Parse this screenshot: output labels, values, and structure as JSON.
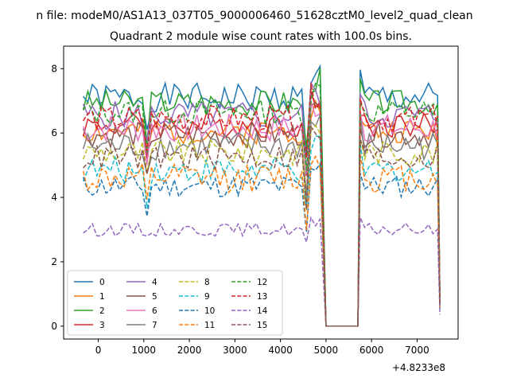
{
  "chart_data": {
    "type": "line",
    "title_top": "n file: modeM0/AS1A13_037T05_9000006460_51628cztM0_level2_quad_clean",
    "title": "Quadrant 2 module wise count rates with 100.0s bins.",
    "x_offset_label": "+4.8233e8",
    "xlim": [
      -760,
      7900
    ],
    "ylim": [
      -0.4,
      8.7
    ],
    "xticks": [
      0,
      1000,
      2000,
      3000,
      4000,
      5000,
      6000,
      7000
    ],
    "yticks": [
      0,
      2,
      4,
      6,
      8
    ],
    "legend_position": "lower-left",
    "series": [
      {
        "name": "0",
        "color": "#1f77b4",
        "dash": "solid",
        "base": 7.1,
        "amp": 0.45,
        "seed": 1
      },
      {
        "name": "1",
        "color": "#ff7f0e",
        "dash": "solid",
        "base": 6.05,
        "amp": 0.4,
        "seed": 2
      },
      {
        "name": "2",
        "color": "#2ca02c",
        "dash": "solid",
        "base": 6.95,
        "amp": 0.4,
        "seed": 3
      },
      {
        "name": "3",
        "color": "#d62728",
        "dash": "solid",
        "base": 6.25,
        "amp": 0.4,
        "seed": 4
      },
      {
        "name": "4",
        "color": "#9467bd",
        "dash": "solid",
        "base": 6.55,
        "amp": 0.45,
        "seed": 5
      },
      {
        "name": "5",
        "color": "#8c564b",
        "dash": "solid",
        "base": 5.95,
        "amp": 0.4,
        "seed": 6
      },
      {
        "name": "6",
        "color": "#e377c2",
        "dash": "solid",
        "base": 6.15,
        "amp": 0.45,
        "seed": 7
      },
      {
        "name": "7",
        "color": "#7f7f7f",
        "dash": "solid",
        "base": 5.6,
        "amp": 0.45,
        "seed": 8
      },
      {
        "name": "8",
        "color": "#bcbd22",
        "dash": "dashed",
        "base": 5.4,
        "amp": 0.4,
        "seed": 9
      },
      {
        "name": "9",
        "color": "#17becf",
        "dash": "dashed",
        "base": 4.85,
        "amp": 0.4,
        "seed": 10
      },
      {
        "name": "10",
        "color": "#1f77b4",
        "dash": "dashed",
        "base": 4.35,
        "amp": 0.35,
        "seed": 11
      },
      {
        "name": "11",
        "color": "#ff7f0e",
        "dash": "dashed",
        "base": 4.6,
        "amp": 0.45,
        "seed": 12
      },
      {
        "name": "12",
        "color": "#2ca02c",
        "dash": "dashed",
        "base": 6.65,
        "amp": 0.4,
        "seed": 13
      },
      {
        "name": "13",
        "color": "#d62728",
        "dash": "dashed",
        "base": 6.45,
        "amp": 0.4,
        "seed": 14
      },
      {
        "name": "14",
        "color": "#9467bd",
        "dash": "dashed",
        "base": 3.0,
        "amp": 0.2,
        "seed": 15
      },
      {
        "name": "15",
        "color": "#8c564b",
        "dash": "dashed",
        "base": 5.25,
        "amp": 0.4,
        "seed": 16
      }
    ]
  }
}
